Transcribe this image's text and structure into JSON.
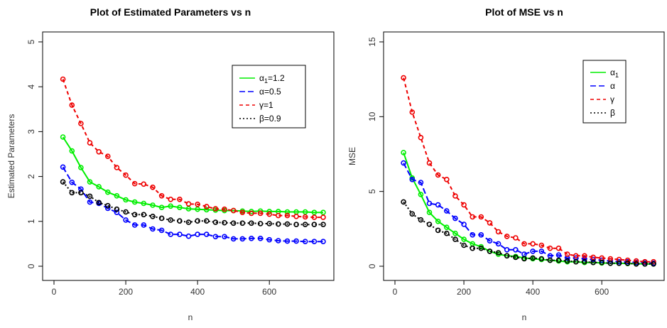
{
  "chart_data": [
    {
      "type": "line",
      "title": "Plot of Estimated Parameters vs n",
      "xlabel": "n",
      "ylabel": "Estimated Parameters",
      "xlim": [
        0,
        750
      ],
      "ylim": [
        0,
        5
      ],
      "xticks": [
        "0",
        "200",
        "400",
        "600"
      ],
      "yticks": [
        "0",
        "1",
        "2",
        "3",
        "4",
        "5"
      ],
      "legend_position": "top-right",
      "x": [
        25,
        50,
        75,
        100,
        125,
        150,
        175,
        200,
        225,
        250,
        275,
        300,
        325,
        350,
        375,
        400,
        425,
        450,
        475,
        500,
        525,
        550,
        575,
        600,
        625,
        650,
        675,
        700,
        725,
        750
      ],
      "series": [
        {
          "name": "α",
          "sub": "1",
          "suffix": "=1.2",
          "color": "#00ee00",
          "dash": "none",
          "values": [
            2.88,
            2.57,
            2.2,
            1.88,
            1.77,
            1.65,
            1.57,
            1.48,
            1.43,
            1.4,
            1.36,
            1.31,
            1.34,
            1.31,
            1.28,
            1.27,
            1.26,
            1.25,
            1.24,
            1.24,
            1.23,
            1.22,
            1.23,
            1.22,
            1.22,
            1.21,
            1.21,
            1.21,
            1.2,
            1.2
          ]
        },
        {
          "name": "α",
          "sub": "",
          "suffix": "=0.5",
          "color": "#0000ff",
          "dash": "8,4",
          "values": [
            2.21,
            1.87,
            1.72,
            1.43,
            1.4,
            1.29,
            1.2,
            1.03,
            0.92,
            0.92,
            0.83,
            0.8,
            0.71,
            0.71,
            0.67,
            0.71,
            0.71,
            0.66,
            0.66,
            0.61,
            0.61,
            0.62,
            0.62,
            0.59,
            0.57,
            0.56,
            0.56,
            0.55,
            0.55,
            0.55
          ]
        },
        {
          "name": "γ",
          "sub": "",
          "suffix": "=1",
          "color": "#ee0000",
          "dash": "5,4",
          "values": [
            4.17,
            3.59,
            3.18,
            2.75,
            2.55,
            2.45,
            2.2,
            2.03,
            1.84,
            1.83,
            1.76,
            1.57,
            1.49,
            1.49,
            1.39,
            1.38,
            1.33,
            1.28,
            1.27,
            1.24,
            1.2,
            1.18,
            1.18,
            1.16,
            1.13,
            1.13,
            1.11,
            1.1,
            1.09,
            1.09
          ]
        },
        {
          "name": "β",
          "sub": "",
          "suffix": "=0.9",
          "color": "#000000",
          "dash": "2,3",
          "values": [
            1.88,
            1.64,
            1.64,
            1.56,
            1.42,
            1.35,
            1.27,
            1.21,
            1.15,
            1.15,
            1.11,
            1.07,
            1.03,
            1.01,
            0.98,
            1.01,
            1.01,
            0.98,
            0.97,
            0.96,
            0.96,
            0.96,
            0.95,
            0.95,
            0.94,
            0.94,
            0.93,
            0.93,
            0.93,
            0.93
          ]
        }
      ]
    },
    {
      "type": "line",
      "title": "Plot of MSE vs n",
      "xlabel": "n",
      "ylabel": "MSE",
      "xlim": [
        0,
        750
      ],
      "ylim": [
        0,
        15
      ],
      "xticks": [
        "0",
        "200",
        "400",
        "600"
      ],
      "yticks": [
        "0",
        "5",
        "10",
        "15"
      ],
      "legend_position": "top-right",
      "x": [
        25,
        50,
        75,
        100,
        125,
        150,
        175,
        200,
        225,
        250,
        275,
        300,
        325,
        350,
        375,
        400,
        425,
        450,
        475,
        500,
        525,
        550,
        575,
        600,
        625,
        650,
        675,
        700,
        725,
        750
      ],
      "series": [
        {
          "name": "α",
          "sub": "1",
          "suffix": "",
          "color": "#00ee00",
          "dash": "none",
          "values": [
            7.6,
            5.9,
            4.8,
            3.6,
            3.0,
            2.6,
            2.2,
            1.8,
            1.5,
            1.3,
            1.0,
            0.8,
            0.7,
            0.65,
            0.55,
            0.5,
            0.45,
            0.4,
            0.35,
            0.3,
            0.3,
            0.25,
            0.25,
            0.22,
            0.2,
            0.2,
            0.18,
            0.17,
            0.15,
            0.15
          ]
        },
        {
          "name": "α",
          "sub": "",
          "suffix": "",
          "color": "#0000ff",
          "dash": "8,4",
          "values": [
            6.9,
            5.8,
            5.6,
            4.2,
            4.1,
            3.7,
            3.2,
            2.8,
            2.1,
            2.1,
            1.7,
            1.5,
            1.1,
            1.1,
            0.8,
            1.0,
            1.0,
            0.7,
            0.75,
            0.55,
            0.55,
            0.5,
            0.45,
            0.4,
            0.35,
            0.3,
            0.3,
            0.25,
            0.25,
            0.2
          ]
        },
        {
          "name": "γ",
          "sub": "",
          "suffix": "",
          "color": "#ee0000",
          "dash": "5,4",
          "values": [
            12.6,
            10.3,
            8.6,
            6.9,
            6.1,
            5.8,
            4.7,
            4.1,
            3.3,
            3.3,
            2.9,
            2.3,
            2.0,
            1.9,
            1.5,
            1.5,
            1.4,
            1.2,
            1.2,
            0.8,
            0.7,
            0.7,
            0.6,
            0.55,
            0.5,
            0.45,
            0.4,
            0.35,
            0.3,
            0.3
          ]
        },
        {
          "name": "β",
          "sub": "",
          "suffix": "",
          "color": "#000000",
          "dash": "2,3",
          "values": [
            4.3,
            3.5,
            3.1,
            2.8,
            2.4,
            2.2,
            1.8,
            1.4,
            1.2,
            1.2,
            1.0,
            0.9,
            0.7,
            0.6,
            0.5,
            0.55,
            0.5,
            0.4,
            0.4,
            0.35,
            0.3,
            0.3,
            0.25,
            0.25,
            0.2,
            0.2,
            0.2,
            0.15,
            0.15,
            0.15
          ]
        }
      ]
    }
  ]
}
